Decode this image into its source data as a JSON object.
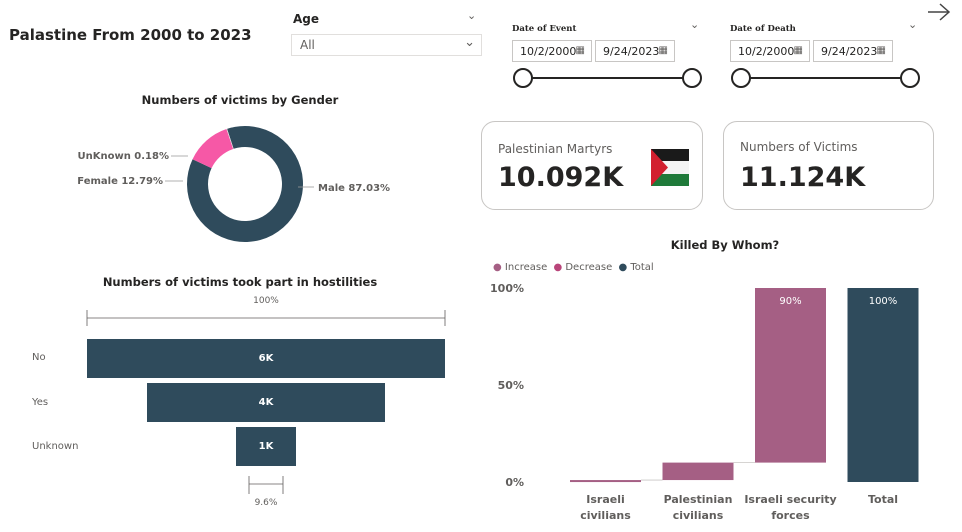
{
  "title": "Palastine From 2000 to 2023",
  "age_slicer": {
    "label": "Age",
    "value": "All"
  },
  "event_slicer": {
    "label": "Date of Event",
    "start": "10/2/2000",
    "end": "9/24/2023"
  },
  "death_slicer": {
    "label": "Date of Death",
    "start": "10/2/2000",
    "end": "9/24/2023"
  },
  "cards": {
    "martyrs": {
      "label": "Palestinian Martyrs",
      "value": "10.092K"
    },
    "victims": {
      "label": "Numbers of Victims",
      "value": "11.124K"
    }
  },
  "colors": {
    "dark": "#2f4b5c",
    "pink": "#f658a6",
    "increase": "#a55f84",
    "decrease": "#b9457a"
  },
  "gender_chart": {
    "title": "Numbers of victims by Gender",
    "slices": [
      {
        "name": "Male",
        "value": 87.03,
        "label": "Male 87.03%"
      },
      {
        "name": "Female",
        "value": 12.79,
        "label": "Female 12.79%"
      },
      {
        "name": "UnKnown",
        "value": 0.18,
        "label": "UnKnown 0.18%"
      }
    ]
  },
  "funnel_chart": {
    "title": "Numbers of victims took part in hostilities",
    "top_pct": "100%",
    "bottom_pct": "9.6%",
    "stages": [
      {
        "name": "No",
        "value": 6,
        "label": "6K"
      },
      {
        "name": "Yes",
        "value": 4,
        "label": "4K"
      },
      {
        "name": "Unknown",
        "value": 1,
        "label": "1K"
      }
    ]
  },
  "chart_data": {
    "type": "bar",
    "title": "Killed By Whom?",
    "legend": [
      "Increase",
      "Decrease",
      "Total"
    ],
    "y_ticks": [
      "100%",
      "50%",
      "0%"
    ],
    "ylim": [
      0,
      100
    ],
    "categories": [
      "Israeli civilians",
      "Palestinian civilians",
      "Israeli security forces",
      "Total"
    ],
    "bars": [
      {
        "category": "Israeli civilians",
        "start": 0,
        "end": 1,
        "kind": "Increase",
        "label": ""
      },
      {
        "category": "Palestinian civilians",
        "start": 1,
        "end": 10,
        "kind": "Increase",
        "label": ""
      },
      {
        "category": "Israeli security forces",
        "start": 10,
        "end": 100,
        "kind": "Increase",
        "label": "90%"
      },
      {
        "category": "Total",
        "start": 0,
        "end": 100,
        "kind": "Total",
        "label": "100%"
      }
    ]
  }
}
